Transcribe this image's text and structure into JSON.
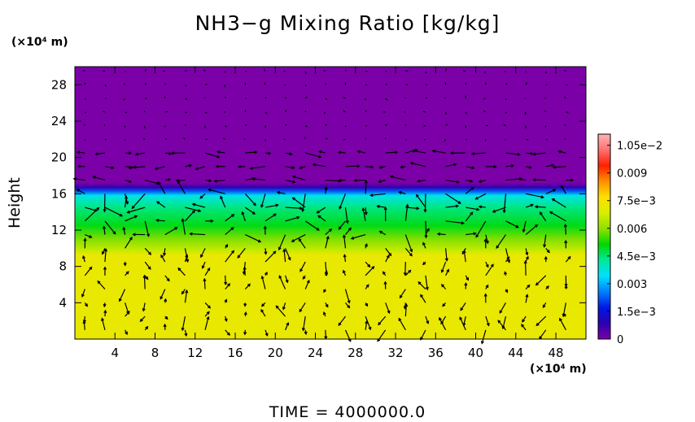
{
  "chart_data": {
    "type": "heatmap",
    "title": "NH3−g Mixing Ratio [kg/kg]",
    "xlabel_unit": "(×10⁴ m)",
    "ylabel": "Height",
    "ylabel_unit": "(×10⁴ m)",
    "footer": "TIME  =  4000000.0",
    "xlim": [
      0,
      51
    ],
    "ylim": [
      0,
      30
    ],
    "x_ticks": [
      4,
      8,
      12,
      16,
      20,
      24,
      28,
      32,
      36,
      40,
      44,
      48
    ],
    "y_ticks": [
      4,
      8,
      12,
      16,
      20,
      24,
      28
    ],
    "colorbar": {
      "range": [
        0,
        0.0111
      ],
      "tick_values": [
        0,
        0.0015,
        0.003,
        0.0045,
        0.006,
        0.0075,
        0.009,
        0.0105
      ],
      "tick_labels": [
        "0",
        "1.5e−3",
        "0.003",
        "4.5e−3",
        "0.006",
        "7.5e−3",
        "0.009",
        "1.05e−2"
      ],
      "colors": [
        "#7b00a8",
        "#2a00b0",
        "#0018e6",
        "#0080ff",
        "#00e0ff",
        "#00e89a",
        "#00d800",
        "#8fe000",
        "#d8ee00",
        "#ffe000",
        "#ff9000",
        "#ff2000",
        "#ff7070",
        "#ffb4b4"
      ]
    },
    "field_profile": {
      "height": [
        0,
        9.3,
        9.8,
        11,
        12.5,
        14.5,
        15.8,
        16.3,
        16.7,
        17.2,
        30
      ],
      "mixing_ratio": [
        0.0072,
        0.0072,
        0.0066,
        0.0059,
        0.005,
        0.0044,
        0.0036,
        0.0022,
        0.0008,
        0,
        0
      ]
    },
    "field_note": "Field shown only via the colour scale; values approximated from colorbar.",
    "wind_vectors": "present (unlabelled)"
  }
}
